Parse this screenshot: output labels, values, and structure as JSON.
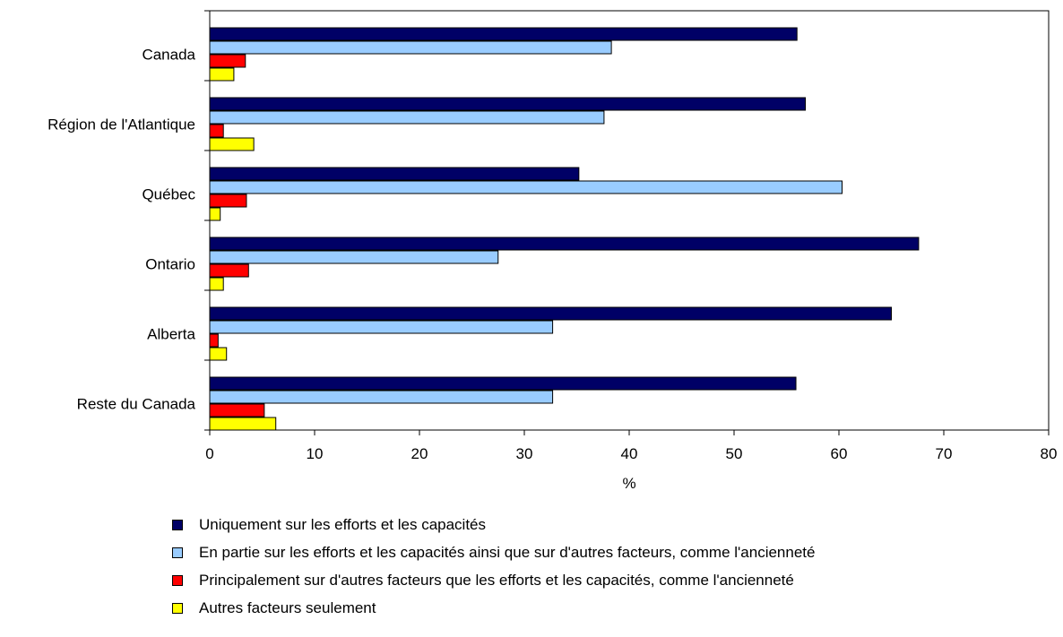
{
  "chart_data": {
    "type": "bar",
    "orientation": "horizontal",
    "categories": [
      "Canada",
      "Région de l'Atlantique",
      "Québec",
      "Ontario",
      "Alberta",
      "Reste du Canada"
    ],
    "series": [
      {
        "name": "Uniquement sur les efforts et les capacités",
        "color": "#000066",
        "values": [
          56.0,
          56.8,
          35.2,
          67.6,
          65.0,
          55.9
        ]
      },
      {
        "name": "En partie sur les efforts et les capacités ainsi que sur d'autres facteurs, comme l'ancienneté",
        "color": "#99ccff",
        "values": [
          38.3,
          37.6,
          60.3,
          27.5,
          32.7,
          32.7
        ]
      },
      {
        "name": "Principalement sur d'autres facteurs que les efforts et les capacités, comme l'ancienneté",
        "color": "#ff0000",
        "values": [
          3.4,
          1.3,
          3.5,
          3.7,
          0.8,
          5.2
        ]
      },
      {
        "name": "Autres facteurs seulement",
        "color": "#ffff00",
        "values": [
          2.3,
          4.2,
          1.0,
          1.3,
          1.6,
          6.3
        ]
      }
    ],
    "xlabel": "%",
    "xlim": [
      0,
      80
    ],
    "xticks": [
      "0",
      "10",
      "20",
      "30",
      "40",
      "50",
      "60",
      "70",
      "80"
    ],
    "grid": false,
    "legend_position": "bottom"
  }
}
